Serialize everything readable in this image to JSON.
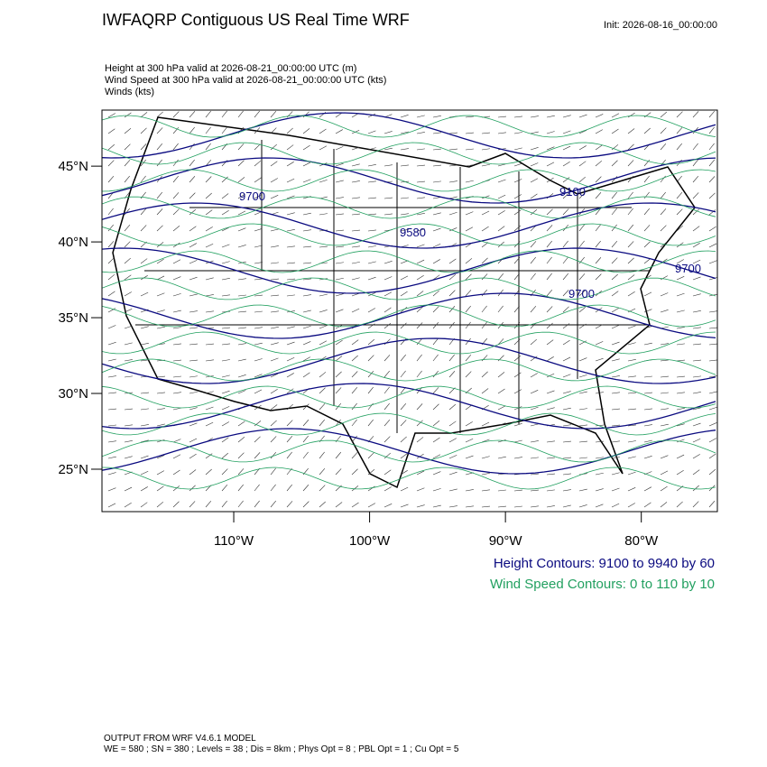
{
  "header": {
    "title": "IWFAQRP Contiguous US Real Time WRF",
    "init": "Init: 2026-08-16_00:00:00",
    "lines": [
      "Height at 300 hPa valid at 2026-08-21_00:00:00 UTC   (m)",
      "Wind Speed at 300 hPa valid at 2026-08-21_00:00:00 UTC   (kts)",
      "Winds   (kts)"
    ]
  },
  "map": {
    "lat_range": [
      22.2,
      48.7
    ],
    "lon_range": [
      -119.7,
      -74.4
    ],
    "lat_ticks": [
      {
        "value": 45,
        "label": "45°N"
      },
      {
        "value": 40,
        "label": "40°N"
      },
      {
        "value": 35,
        "label": "35°N"
      },
      {
        "value": 30,
        "label": "30°N"
      },
      {
        "value": 25,
        "label": "25°N"
      }
    ],
    "lon_ticks": [
      {
        "value": -110,
        "label": "110°W"
      },
      {
        "value": -100,
        "label": "100°W"
      },
      {
        "value": -90,
        "label": "90°W"
      },
      {
        "value": -80,
        "label": "80°W"
      }
    ],
    "contour_labels": [
      "9700",
      "9580",
      "9100",
      "9700",
      "9700"
    ]
  },
  "legend": {
    "height": "Height Contours: 9100 to 9940 by 60",
    "wind": "Wind Speed Contours: 0 to 110 by 10"
  },
  "footer": [
    "OUTPUT FROM WRF V4.6.1 MODEL",
    "WE = 580 ; SN = 380 ; Levels = 38 ; Dis = 8km ; Phys Opt = 8 ; PBL Opt = 1 ; Cu Opt = 5"
  ]
}
